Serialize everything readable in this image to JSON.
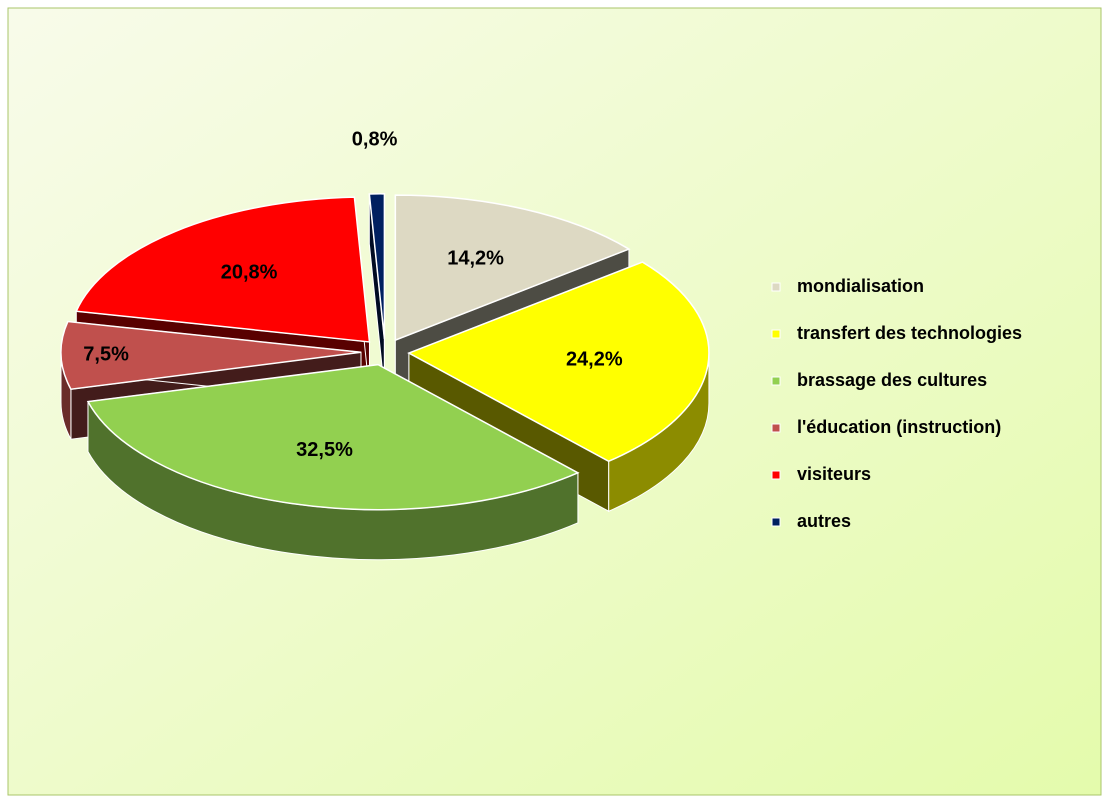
{
  "chart_data": {
    "type": "pie",
    "categories": [
      "mondialisation",
      "transfert des technologies",
      "brassage des cultures",
      "l'éducation (instruction)",
      "visiteurs",
      "autres"
    ],
    "values": [
      14.2,
      24.2,
      32.5,
      7.5,
      20.8,
      0.8
    ],
    "value_labels": [
      "14,2%",
      "24,2%",
      "32,5%",
      "7,5%",
      "20,8%",
      "0,8%"
    ],
    "colors": [
      "#ddd9c3",
      "#ffff00",
      "#92d050",
      "#c0504d",
      "#ff0000",
      "#002060"
    ],
    "legend": "right"
  }
}
